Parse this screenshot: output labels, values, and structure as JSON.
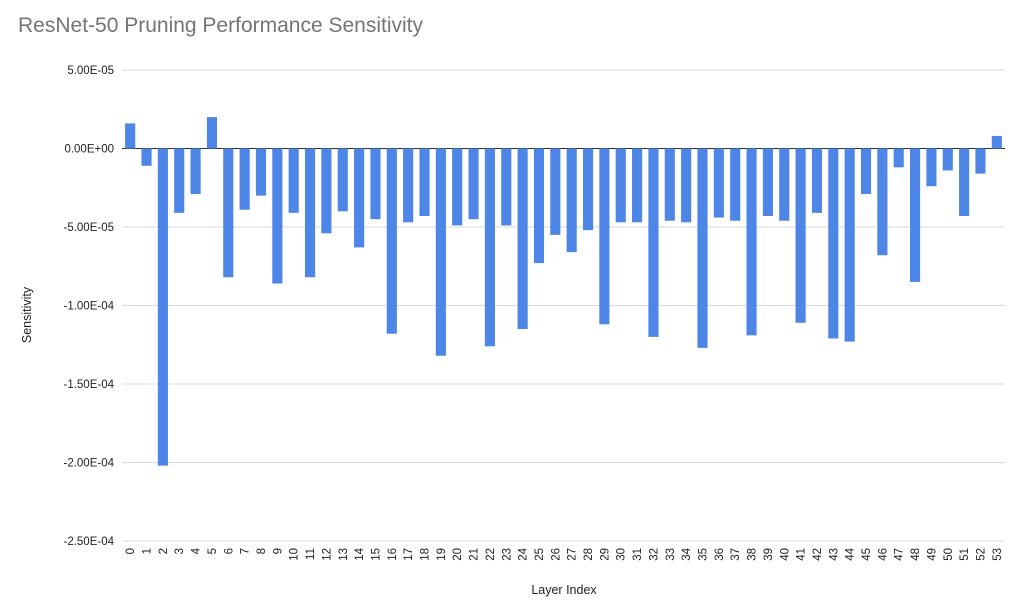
{
  "chart_data": {
    "type": "bar",
    "title": "ResNet-50 Pruning Performance Sensitivity",
    "xlabel": "Layer Index",
    "ylabel": "Sensitivity",
    "ylim": [
      -0.00025,
      5e-05
    ],
    "yticks": [
      5e-05,
      0,
      -5e-05,
      -0.0001,
      -0.00015,
      -0.0002,
      -0.00025
    ],
    "ytick_labels": [
      "5.00E-05",
      "0.00E+00",
      "-5.00E-05",
      "-1.00E-04",
      "-1.50E-04",
      "-2.00E-04",
      "-2.50E-04"
    ],
    "grid": true,
    "bar_color": "#4e86e8",
    "categories": [
      "0",
      "1",
      "2",
      "3",
      "4",
      "5",
      "6",
      "7",
      "8",
      "9",
      "10",
      "11",
      "12",
      "13",
      "14",
      "15",
      "16",
      "17",
      "18",
      "19",
      "20",
      "21",
      "22",
      "23",
      "24",
      "25",
      "26",
      "27",
      "28",
      "29",
      "30",
      "31",
      "32",
      "33",
      "34",
      "35",
      "36",
      "37",
      "38",
      "39",
      "40",
      "41",
      "42",
      "43",
      "44",
      "45",
      "46",
      "47",
      "48",
      "49",
      "50",
      "51",
      "52",
      "53"
    ],
    "values": [
      1.6e-05,
      -1.1e-05,
      -0.000202,
      -4.1e-05,
      -2.9e-05,
      2e-05,
      -8.2e-05,
      -3.9e-05,
      -3e-05,
      -8.6e-05,
      -4.1e-05,
      -8.2e-05,
      -5.4e-05,
      -4e-05,
      -6.3e-05,
      -4.5e-05,
      -0.000118,
      -4.7e-05,
      -4.3e-05,
      -0.000132,
      -4.9e-05,
      -4.5e-05,
      -0.000126,
      -4.9e-05,
      -0.000115,
      -7.3e-05,
      -5.5e-05,
      -6.6e-05,
      -5.2e-05,
      -0.000112,
      -4.7e-05,
      -4.7e-05,
      -0.00012,
      -4.6e-05,
      -4.7e-05,
      -0.000127,
      -4.4e-05,
      -4.6e-05,
      -0.000119,
      -4.3e-05,
      -4.6e-05,
      -0.000111,
      -4.1e-05,
      -0.000121,
      -0.000123,
      -2.9e-05,
      -6.8e-05,
      -1.2e-05,
      -8.5e-05,
      -2.4e-05,
      -1.4e-05,
      -4.3e-05,
      -1.6e-05,
      8e-06
    ]
  }
}
